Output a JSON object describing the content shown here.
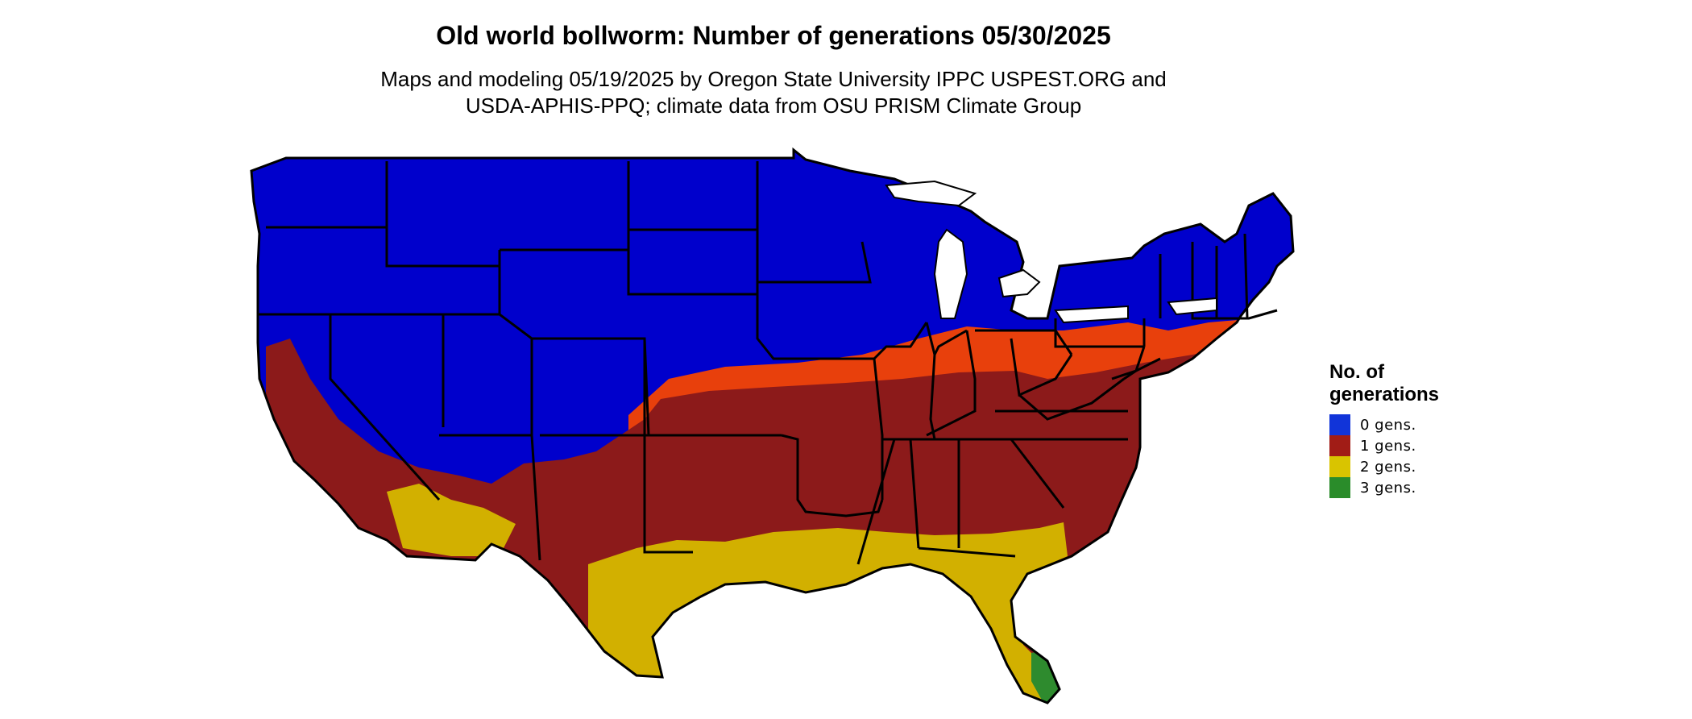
{
  "title": "Old world bollworm: Number of generations 05/30/2025",
  "subtitle": {
    "line1": "Maps and modeling 05/19/2025 by Oregon State University IPPC USPEST.ORG and",
    "line2": "USDA-APHIS-PPQ; climate data from OSU PRISM Climate Group"
  },
  "legend": {
    "title_line1": "No. of",
    "title_line2": "generations",
    "items": [
      {
        "label": "0 gens.",
        "color": "#1134d9"
      },
      {
        "label": "1 gens.",
        "color": "#a11c16"
      },
      {
        "label": "2 gens.",
        "color": "#d9c400"
      },
      {
        "label": "3 gens.",
        "color": "#2a8c2a"
      }
    ]
  },
  "map_colors": {
    "zero": "#0000cc",
    "one_dark": "#8c1a1a",
    "one_light": "#e8400c",
    "two": "#d2b000",
    "two_light": "#e6e000",
    "three": "#2e8b2e",
    "borders": "#000000"
  }
}
